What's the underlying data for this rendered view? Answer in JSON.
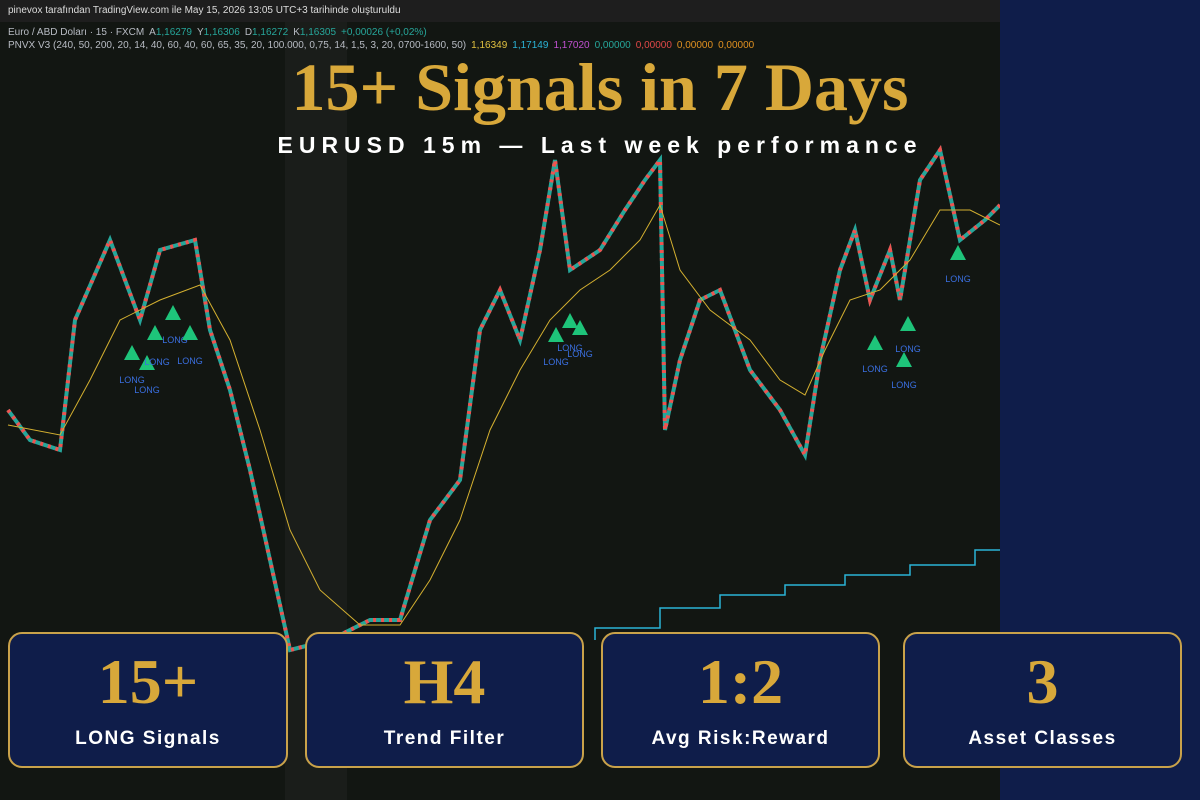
{
  "watermark": "pinevox tarafından TradingView.com ile May 15, 2026 13:05 UTC+3 tarihinde oluşturuldu",
  "symbol": "Euro / ABD Doları · 15 · FXCM",
  "ohlc": [
    {
      "label": "A",
      "value": "1,16279"
    },
    {
      "label": "Y",
      "value": "1,16306"
    },
    {
      "label": "D",
      "value": "1,16272"
    },
    {
      "label": "K",
      "value": "1,16305"
    }
  ],
  "change": "+0,00026 (+0,02%)",
  "indicator": "PNVX V3 (240, 50, 200, 20, 14, 40, 60, 40, 60, 65, 35, 20, 100.000, 0,75, 14, 1,5, 3, 20, 0700-1600, 50)",
  "indicator_values": [
    {
      "text": "1,16349",
      "color": "#e0c040"
    },
    {
      "text": "1,17149",
      "color": "#2bb3d6"
    },
    {
      "text": "1,17020",
      "color": "#c050d0"
    },
    {
      "text": "0,00000",
      "color": "#26a69a"
    },
    {
      "text": "0,00000",
      "color": "#e04848"
    },
    {
      "text": "0,00000",
      "color": "#e09020"
    },
    {
      "text": "0,00000",
      "color": "#e09020"
    }
  ],
  "title": "15+ Signals in 7 Days",
  "subtitle": "EURUSD 15m — Last week performance",
  "signals": [
    "LONG",
    "LONG",
    "LONG",
    "LONG",
    "LONG",
    "LONG",
    "LONG",
    "LONG",
    "LONG",
    "LONG",
    "LONG",
    "LONG"
  ],
  "cards": [
    {
      "value": "15+",
      "label": "LONG Signals"
    },
    {
      "value": "H4",
      "label": "Trend Filter"
    },
    {
      "value": "1:2",
      "label": "Avg Risk:Reward"
    },
    {
      "value": "3",
      "label": "Asset Classes"
    }
  ]
}
